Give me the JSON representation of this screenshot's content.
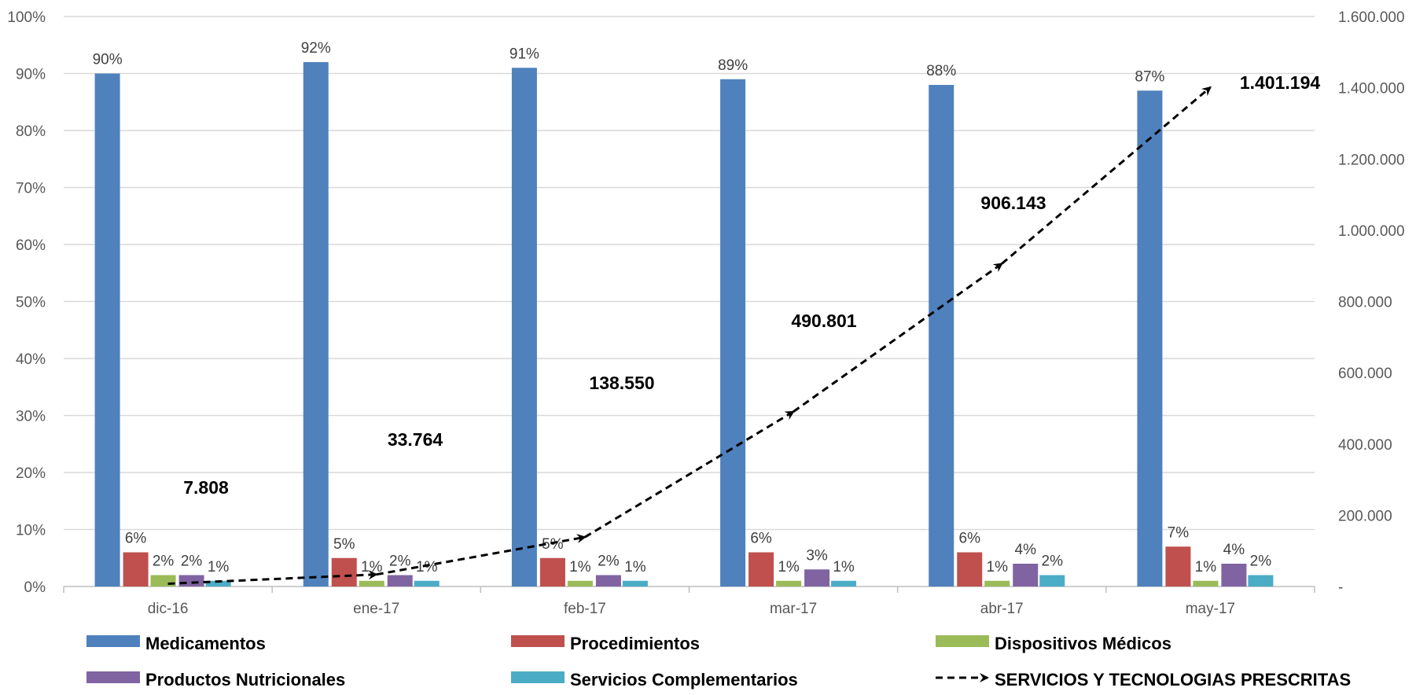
{
  "chart_data": {
    "type": "bar",
    "categories": [
      "dic-16",
      "ene-17",
      "feb-17",
      "mar-17",
      "abr-17",
      "may-17"
    ],
    "series": [
      {
        "name": "Medicamentos",
        "color": "#4F81BD",
        "values": [
          90,
          92,
          91,
          89,
          88,
          87
        ],
        "labels": [
          "90%",
          "92%",
          "91%",
          "89%",
          "88%",
          "87%"
        ]
      },
      {
        "name": "Procedimientos",
        "color": "#C0504D",
        "values": [
          6,
          5,
          5,
          6,
          6,
          7
        ],
        "labels": [
          "6%",
          "5%",
          "5%",
          "6%",
          "6%",
          "7%"
        ]
      },
      {
        "name": "Dispositivos Médicos",
        "color": "#9BBB59",
        "values": [
          2,
          1,
          1,
          1,
          1,
          1
        ],
        "labels": [
          "2%",
          "1%",
          "1%",
          "1%",
          "1%",
          "1%"
        ]
      },
      {
        "name": "Productos Nutricionales",
        "color": "#8064A2",
        "values": [
          2,
          2,
          2,
          3,
          4,
          4
        ],
        "labels": [
          "2%",
          "2%",
          "2%",
          "3%",
          "4%",
          "4%"
        ]
      },
      {
        "name": "Servicios Complementarios",
        "color": "#4BACC6",
        "values": [
          1,
          1,
          1,
          1,
          2,
          2
        ],
        "labels": [
          "1%",
          "1%",
          "1%",
          "1%",
          "2%",
          "2%"
        ]
      }
    ],
    "line_series": {
      "name": "SERVICIOS Y TECNOLOGIAS PRESCRITAS",
      "color": "#000000",
      "style": "dashed with arrowheads",
      "axis": "right",
      "values": [
        7808,
        33764,
        138550,
        490801,
        906143,
        1401194
      ],
      "labels": [
        "7.808",
        "33.764",
        "138.550",
        "490.801",
        "906.143",
        "1.401.194"
      ]
    },
    "y_left": {
      "min": 0,
      "max": 100,
      "ticks": [
        "0%",
        "10%",
        "20%",
        "30%",
        "40%",
        "50%",
        "60%",
        "70%",
        "80%",
        "90%",
        "100%"
      ]
    },
    "y_right": {
      "min": 0,
      "max": 1600000,
      "ticks": [
        "-",
        "200.000",
        "400.000",
        "600.000",
        "800.000",
        "1.000.000",
        "1.200.000",
        "1.400.000",
        "1.600.000"
      ]
    },
    "grid": true,
    "legend_position": "bottom"
  }
}
